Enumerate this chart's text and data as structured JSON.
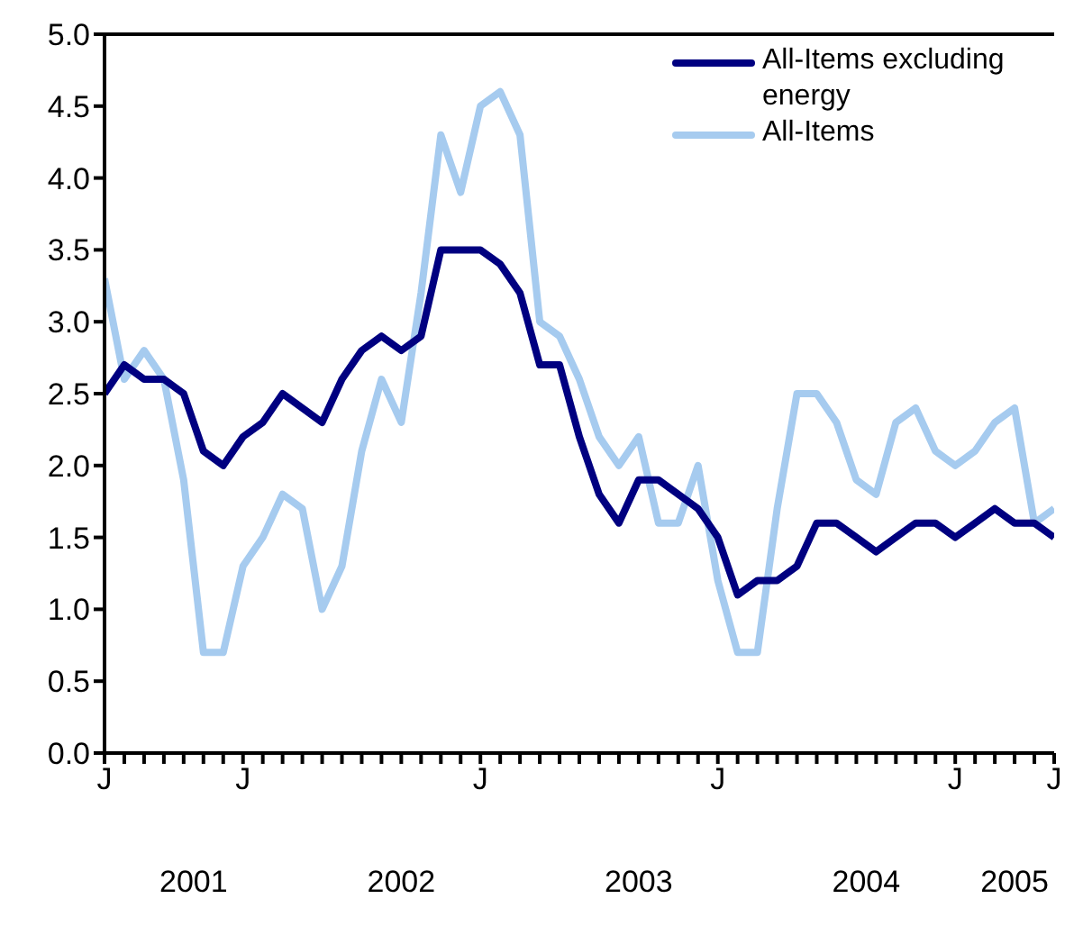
{
  "chart_data": {
    "type": "line",
    "categories": [
      "J",
      null,
      null,
      null,
      null,
      null,
      null,
      "J",
      null,
      null,
      null,
      null,
      null,
      null,
      null,
      null,
      null,
      null,
      null,
      "J",
      null,
      null,
      null,
      null,
      null,
      null,
      null,
      null,
      null,
      null,
      null,
      "J",
      null,
      null,
      null,
      null,
      null,
      null,
      null,
      null,
      null,
      null,
      null,
      "J",
      null,
      null,
      null,
      null,
      "J"
    ],
    "series": [
      {
        "name": "All-Items excluding energy",
        "color": "#000080",
        "values": [
          2.5,
          2.7,
          2.6,
          2.6,
          2.5,
          2.1,
          2.0,
          2.2,
          2.3,
          2.5,
          2.4,
          2.3,
          2.6,
          2.8,
          2.9,
          2.8,
          2.9,
          3.5,
          3.5,
          3.5,
          3.4,
          3.2,
          2.7,
          2.7,
          2.2,
          1.8,
          1.6,
          1.9,
          1.9,
          1.8,
          1.7,
          1.5,
          1.1,
          1.2,
          1.2,
          1.3,
          1.6,
          1.6,
          1.5,
          1.4,
          1.5,
          1.6,
          1.6,
          1.5,
          1.6,
          1.7,
          1.6,
          1.6,
          1.5
        ]
      },
      {
        "name": "All-Items",
        "color": "#a6cbef",
        "values": [
          3.3,
          2.6,
          2.8,
          2.6,
          1.9,
          0.7,
          0.7,
          1.3,
          1.5,
          1.8,
          1.7,
          1.0,
          1.3,
          2.1,
          2.6,
          2.3,
          3.2,
          4.3,
          3.9,
          4.5,
          4.6,
          4.3,
          3.0,
          2.9,
          2.6,
          2.2,
          2.0,
          2.2,
          1.6,
          1.6,
          2.0,
          1.2,
          0.7,
          0.7,
          1.7,
          2.5,
          2.5,
          2.3,
          1.9,
          1.8,
          2.3,
          2.4,
          2.1,
          2.0,
          2.1,
          2.3,
          2.4,
          1.6,
          1.7
        ]
      }
    ],
    "ylim": [
      0,
      5
    ],
    "yticks": [
      {
        "value": 0,
        "label": "0.0"
      },
      {
        "value": 0.5,
        "label": "0.5"
      },
      {
        "value": 1,
        "label": "1.0"
      },
      {
        "value": 1.5,
        "label": "1.5"
      },
      {
        "value": 2,
        "label": "2.0"
      },
      {
        "value": 2.5,
        "label": "2.5"
      },
      {
        "value": 3,
        "label": "3.0"
      },
      {
        "value": 3.5,
        "label": "3.5"
      },
      {
        "value": 4,
        "label": "4.0"
      },
      {
        "value": 4.5,
        "label": "4.5"
      },
      {
        "value": 5,
        "label": "5.0"
      }
    ],
    "annotations": [
      "2001",
      "2002",
      "2003",
      "2004",
      "2005"
    ],
    "legend": "top right",
    "grid": false,
    "marker": "none",
    "line_style": "solid"
  }
}
